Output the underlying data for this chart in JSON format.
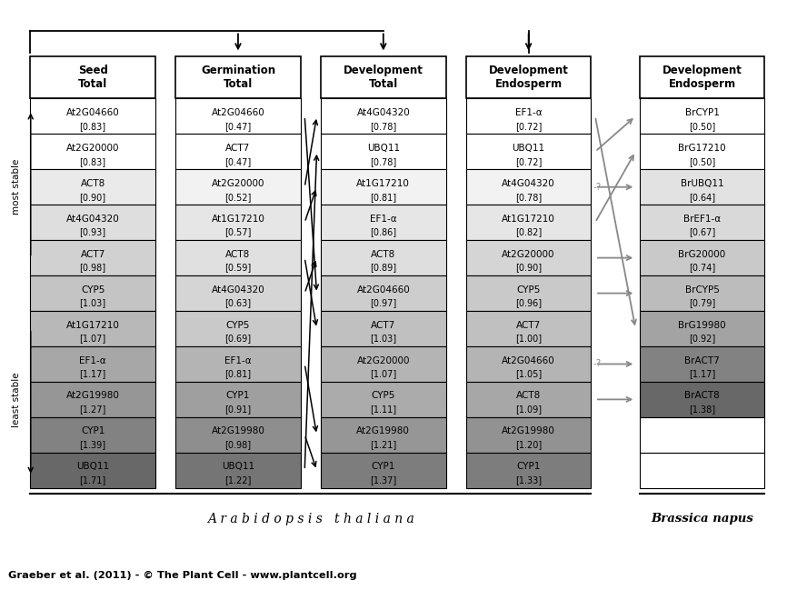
{
  "columns": [
    {
      "title": "Seed\nTotal",
      "genes": [
        {
          "name": "At2G04660",
          "value": "[0.83]",
          "shade": 0.0
        },
        {
          "name": "At2G20000",
          "value": "[0.83]",
          "shade": 0.0
        },
        {
          "name": "ACT8",
          "value": "[0.90]",
          "shade": 0.1
        },
        {
          "name": "At4G04320",
          "value": "[0.93]",
          "shade": 0.16
        },
        {
          "name": "ACT7",
          "value": "[0.98]",
          "shade": 0.22
        },
        {
          "name": "CYP5",
          "value": "[1.03]",
          "shade": 0.28
        },
        {
          "name": "At1G17210",
          "value": "[1.07]",
          "shade": 0.34
        },
        {
          "name": "EF1-α",
          "value": "[1.17]",
          "shade": 0.42
        },
        {
          "name": "At2G19980",
          "value": "[1.27]",
          "shade": 0.5
        },
        {
          "name": "CYP1",
          "value": "[1.39]",
          "shade": 0.6
        },
        {
          "name": "UBQ11",
          "value": "[1.71]",
          "shade": 0.72
        }
      ]
    },
    {
      "title": "Germination\nTotal",
      "genes": [
        {
          "name": "At2G04660",
          "value": "[0.47]",
          "shade": 0.0
        },
        {
          "name": "ACT7",
          "value": "[0.47]",
          "shade": 0.0
        },
        {
          "name": "At2G20000",
          "value": "[0.52]",
          "shade": 0.06
        },
        {
          "name": "At1G17210",
          "value": "[0.57]",
          "shade": 0.12
        },
        {
          "name": "ACT8",
          "value": "[0.59]",
          "shade": 0.15
        },
        {
          "name": "At4G04320",
          "value": "[0.63]",
          "shade": 0.2
        },
        {
          "name": "CYP5",
          "value": "[0.69]",
          "shade": 0.26
        },
        {
          "name": "EF1-α",
          "value": "[0.81]",
          "shade": 0.36
        },
        {
          "name": "CYP1",
          "value": "[0.91]",
          "shade": 0.46
        },
        {
          "name": "At2G19980",
          "value": "[0.98]",
          "shade": 0.54
        },
        {
          "name": "UBQ11",
          "value": "[1.22]",
          "shade": 0.66
        }
      ]
    },
    {
      "title": "Development\nTotal",
      "genes": [
        {
          "name": "At4G04320",
          "value": "[0.78]",
          "shade": 0.0
        },
        {
          "name": "UBQ11",
          "value": "[0.78]",
          "shade": 0.0
        },
        {
          "name": "At1G17210",
          "value": "[0.81]",
          "shade": 0.06
        },
        {
          "name": "EF1-α",
          "value": "[0.86]",
          "shade": 0.12
        },
        {
          "name": "ACT8",
          "value": "[0.89]",
          "shade": 0.16
        },
        {
          "name": "At2G04660",
          "value": "[0.97]",
          "shade": 0.24
        },
        {
          "name": "ACT7",
          "value": "[1.03]",
          "shade": 0.3
        },
        {
          "name": "At2G20000",
          "value": "[1.07]",
          "shade": 0.36
        },
        {
          "name": "CYP5",
          "value": "[1.11]",
          "shade": 0.4
        },
        {
          "name": "At2G19980",
          "value": "[1.21]",
          "shade": 0.5
        },
        {
          "name": "CYP1",
          "value": "[1.37]",
          "shade": 0.62
        }
      ]
    },
    {
      "title": "Development\nEndosperm",
      "genes": [
        {
          "name": "EF1-α",
          "value": "[0.72]",
          "shade": 0.0
        },
        {
          "name": "UBQ11",
          "value": "[0.72]",
          "shade": 0.0
        },
        {
          "name": "At4G04320",
          "value": "[0.78]",
          "shade": 0.06
        },
        {
          "name": "At1G17210",
          "value": "[0.82]",
          "shade": 0.12
        },
        {
          "name": "At2G20000",
          "value": "[0.90]",
          "shade": 0.2
        },
        {
          "name": "CYP5",
          "value": "[0.96]",
          "shade": 0.26
        },
        {
          "name": "ACT7",
          "value": "[1.00]",
          "shade": 0.3
        },
        {
          "name": "At2G04660",
          "value": "[1.05]",
          "shade": 0.36
        },
        {
          "name": "ACT8",
          "value": "[1.09]",
          "shade": 0.42
        },
        {
          "name": "At2G19980",
          "value": "[1.20]",
          "shade": 0.52
        },
        {
          "name": "CYP1",
          "value": "[1.33]",
          "shade": 0.62
        }
      ]
    },
    {
      "title": "Development\nEndosperm",
      "genes": [
        {
          "name": "BrCYP1",
          "value": "[0.50]",
          "shade": 0.0
        },
        {
          "name": "BrG17210",
          "value": "[0.50]",
          "shade": 0.0
        },
        {
          "name": "BrUBQ11",
          "value": "[0.64]",
          "shade": 0.14
        },
        {
          "name": "BrEF1-α",
          "value": "[0.67]",
          "shade": 0.18
        },
        {
          "name": "BrG20000",
          "value": "[0.74]",
          "shade": 0.26
        },
        {
          "name": "BrCYP5",
          "value": "[0.79]",
          "shade": 0.32
        },
        {
          "name": "BrG19980",
          "value": "[0.92]",
          "shade": 0.44
        },
        {
          "name": "BrACT7",
          "value": "[1.17]",
          "shade": 0.6
        },
        {
          "name": "BrACT8",
          "value": "[1.38]",
          "shade": 0.72
        },
        {
          "name": "",
          "value": "",
          "shade": -1
        },
        {
          "name": "",
          "value": "",
          "shade": -1
        }
      ]
    }
  ],
  "black_arrows": [
    [
      1,
      7,
      2,
      9
    ],
    [
      1,
      9,
      2,
      10
    ],
    [
      1,
      4,
      2,
      6
    ],
    [
      1,
      2,
      2,
      0
    ],
    [
      1,
      0,
      2,
      5
    ],
    [
      1,
      5,
      2,
      4
    ],
    [
      1,
      10,
      2,
      1
    ],
    [
      1,
      3,
      2,
      2
    ]
  ],
  "grey_arrows": [
    [
      3,
      2,
      4,
      2,
      true
    ],
    [
      3,
      4,
      4,
      4,
      false
    ],
    [
      3,
      5,
      4,
      5,
      false
    ],
    [
      3,
      7,
      4,
      7,
      true
    ],
    [
      3,
      8,
      4,
      8,
      false
    ],
    [
      3,
      0,
      4,
      6,
      false
    ],
    [
      3,
      1,
      4,
      0,
      false
    ],
    [
      3,
      3,
      4,
      1,
      false
    ]
  ],
  "arabidopsis_label": "A r a b i d o p s i s   t h a l i a n a",
  "brassica_label": "Brassica napus",
  "citation": "Graeber et al. (2011) - © The Plant Cell - www.plantcell.org"
}
